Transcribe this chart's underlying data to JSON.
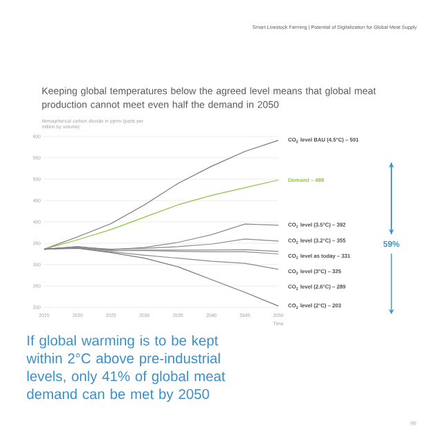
{
  "chart_data": {
    "type": "line",
    "title": "Keeping global temperatures below the agreed level means that global meat production cannot meet even half the demand in 2050",
    "ylabel": "Atmospherical carbon dioxide in ppmv (parts per million by volume)",
    "xlabel": "Time",
    "x": [
      2015,
      2020,
      2025,
      2030,
      2035,
      2040,
      2045,
      2050
    ],
    "series": [
      {
        "name": "CO$_{2}$ level BAU (4.5°C) – 591",
        "color": "#76767c",
        "values": [
          336,
          365,
          396,
          440,
          490,
          530,
          565,
          591
        ]
      },
      {
        "name": "Demand – 498",
        "color": "#8cc63f",
        "values": [
          336,
          358,
          382,
          411,
          440,
          462,
          480,
          498
        ]
      },
      {
        "name": "CO$_{2}$ level (3.5°C) – 392",
        "color": "#8a8a90",
        "values": [
          336,
          342,
          335,
          340,
          352,
          370,
          395,
          392
        ]
      },
      {
        "name": "CO$_{2}$ level (3.2°C) – 355",
        "color": "#8a8a90",
        "values": [
          336,
          341,
          336,
          338,
          342,
          348,
          360,
          355
        ]
      },
      {
        "name": "CO$_{2}$ level as today – 331",
        "color": "#8a8a90",
        "values": [
          336,
          340,
          333,
          334,
          334,
          334,
          335,
          331
        ]
      },
      {
        "name": "CO$_{2}$ level (3°C) – 325",
        "color": "#8a8a90",
        "values": [
          336,
          342,
          333,
          333,
          331,
          330,
          330,
          325
        ]
      },
      {
        "name": "CO$_{2}$ level (2.6°C) – 289",
        "color": "#8a8a90",
        "values": [
          336,
          340,
          330,
          322,
          315,
          308,
          303,
          289
        ]
      },
      {
        "name": "CO$_{2}$ level (2°C) – 203",
        "color": "#76767c",
        "values": [
          336,
          338,
          328,
          315,
          295,
          265,
          235,
          203
        ]
      }
    ],
    "xlim": [
      2015,
      2050
    ],
    "xticks": [
      2015,
      2020,
      2025,
      2030,
      2035,
      2040,
      2045,
      2050
    ],
    "ylim": [
      200,
      600
    ],
    "yticks": [
      200,
      250,
      300,
      350,
      400,
      450,
      500,
      550,
      600
    ],
    "grid": "y",
    "annotations": [
      "Smart Livestock Farming | Potential of Digitalization for Global Meat Supply",
      "59%",
      "If global warming is to be kept within 2°C above pre-industrial levels, only 41% of global meat demand can be met by 2050",
      "66"
    ]
  }
}
